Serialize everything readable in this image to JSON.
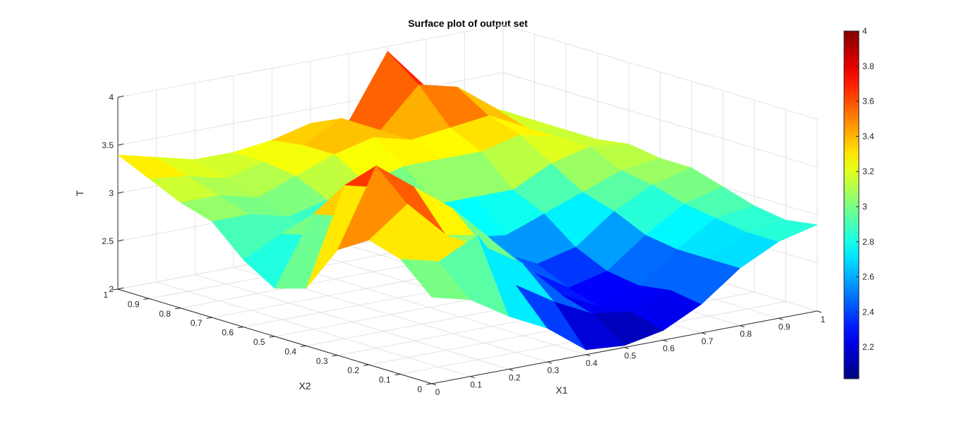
{
  "chart_data": {
    "type": "surface",
    "title": "Surface plot of output set",
    "xlabel": "X1",
    "ylabel": "X2",
    "zlabel": "T",
    "xlim": [
      0,
      1
    ],
    "ylim": [
      0,
      1
    ],
    "zlim": [
      2,
      4
    ],
    "x_ticks": [
      "0",
      "0.1",
      "0.2",
      "0.3",
      "0.4",
      "0.5",
      "0.6",
      "0.7",
      "0.8",
      "0.9",
      "1"
    ],
    "y_ticks": [
      "0",
      "0.1",
      "0.2",
      "0.3",
      "0.4",
      "0.5",
      "0.6",
      "0.7",
      "0.8",
      "0.9",
      "1"
    ],
    "z_ticks": [
      "2",
      "2.5",
      "3",
      "3.5",
      "4"
    ],
    "colorbar_ticks": [
      "2.2",
      "2.4",
      "2.6",
      "2.8",
      "3",
      "3.2",
      "3.4",
      "3.6",
      "3.8",
      "4"
    ],
    "colorbar_range": [
      2.02,
      4.0
    ],
    "colormap": "jet",
    "grid": true,
    "x": [
      0,
      0.1,
      0.2,
      0.3,
      0.4,
      0.5,
      0.6,
      0.7,
      0.8,
      0.9,
      1
    ],
    "y": [
      0,
      0.1,
      0.2,
      0.3,
      0.4,
      0.5,
      0.6,
      0.7,
      0.8,
      0.9,
      1
    ],
    "z": [
      [
        2.9,
        2.8,
        2.55,
        2.35,
        2.05,
        2.02,
        2.1,
        2.3,
        2.6,
        2.8,
        2.9
      ],
      [
        3.2,
        3.1,
        3.3,
        2.7,
        2.45,
        2.25,
        2.2,
        2.35,
        2.6,
        2.8,
        2.85
      ],
      [
        3.3,
        3.6,
        3.2,
        3.0,
        2.75,
        2.35,
        2.15,
        2.3,
        2.6,
        2.85,
        2.9
      ],
      [
        3.1,
        3.9,
        3.6,
        3.3,
        2.9,
        2.5,
        2.25,
        2.35,
        2.65,
        2.9,
        3.0
      ],
      [
        2.6,
        3.6,
        3.5,
        3.2,
        2.85,
        2.6,
        2.4,
        2.5,
        2.8,
        3.0,
        3.1
      ],
      [
        2.5,
        3.2,
        3.1,
        2.9,
        2.7,
        2.65,
        2.6,
        2.75,
        2.9,
        3.05,
        3.1
      ],
      [
        2.7,
        2.9,
        2.8,
        2.8,
        2.8,
        2.9,
        2.9,
        2.9,
        3.1,
        3.2,
        3.15
      ],
      [
        3.0,
        3.0,
        2.9,
        3.0,
        3.1,
        3.2,
        3.2,
        3.2,
        3.3,
        3.2,
        3.1
      ],
      [
        3.1,
        3.1,
        3.0,
        3.15,
        3.3,
        3.4,
        3.3,
        3.35,
        3.4,
        3.2,
        3.1
      ],
      [
        3.25,
        3.2,
        3.1,
        3.2,
        3.3,
        3.5,
        3.3,
        3.7,
        3.6,
        3.3,
        3.1
      ],
      [
        3.4,
        3.3,
        3.2,
        3.2,
        3.25,
        3.35,
        3.3,
        3.95,
        3.5,
        3.2,
        3.0
      ]
    ]
  }
}
